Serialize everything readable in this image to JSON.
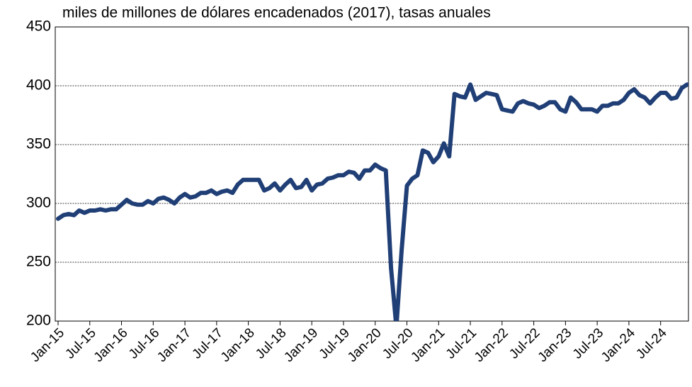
{
  "chart_data": {
    "type": "line",
    "title": "miles de millones de dólares encadenados (2017), tasas anuales",
    "categories": [
      "Jan-15",
      null,
      null,
      null,
      null,
      null,
      "Jul-15",
      null,
      null,
      null,
      null,
      null,
      "Jan-16",
      null,
      null,
      null,
      null,
      null,
      "Jul-16",
      null,
      null,
      null,
      null,
      null,
      "Jan-17",
      null,
      null,
      null,
      null,
      null,
      "Jul-17",
      null,
      null,
      null,
      null,
      null,
      "Jan-18",
      null,
      null,
      null,
      null,
      null,
      "Jul-18",
      null,
      null,
      null,
      null,
      null,
      "Jan-19",
      null,
      null,
      null,
      null,
      null,
      "Jul-19",
      null,
      null,
      null,
      null,
      null,
      "Jan-20",
      null,
      null,
      null,
      null,
      null,
      "Jul-20",
      null,
      null,
      null,
      null,
      null,
      "Jan-21",
      null,
      null,
      null,
      null,
      null,
      "Jul-21",
      null,
      null,
      null,
      null,
      null,
      "Jan-22",
      null,
      null,
      null,
      null,
      null,
      "Jul-22",
      null,
      null,
      null,
      null,
      null,
      "Jan-23",
      null,
      null,
      null,
      null,
      null,
      "Jul-23",
      null,
      null,
      null,
      null,
      null,
      "Jan-24",
      null,
      null,
      null,
      null,
      null,
      "Jul-24",
      null,
      null,
      null,
      null,
      null
    ],
    "series": [
      {
        "name": null,
        "color": "#203f76",
        "values": [
          287,
          290,
          291,
          290,
          294,
          292,
          294,
          294,
          295,
          294,
          295,
          295,
          299,
          303,
          300,
          299,
          299,
          302,
          300,
          304,
          305,
          303,
          300,
          305,
          308,
          305,
          306,
          309,
          309,
          311,
          308,
          310,
          311,
          309,
          316,
          320,
          320,
          320,
          320,
          311,
          313,
          317,
          311,
          316,
          320,
          313,
          314,
          320,
          311,
          316,
          317,
          321,
          322,
          324,
          324,
          327,
          326,
          321,
          328,
          328,
          333,
          330,
          328,
          245,
          195,
          260,
          315,
          321,
          324,
          345,
          343,
          335,
          340,
          351,
          340,
          393,
          391,
          390,
          401,
          388,
          391,
          394,
          393,
          392,
          380,
          379,
          378,
          385,
          387,
          385,
          384,
          381,
          383,
          386,
          386,
          380,
          378,
          390,
          386,
          380,
          380,
          380,
          378,
          383,
          383,
          385,
          385,
          388,
          394,
          397,
          392,
          390,
          385,
          390,
          394,
          394,
          389,
          390,
          398,
          401
        ]
      }
    ],
    "ylim": [
      200,
      450
    ],
    "yticks": [
      200,
      250,
      300,
      350,
      400,
      450
    ],
    "grid": true
  }
}
